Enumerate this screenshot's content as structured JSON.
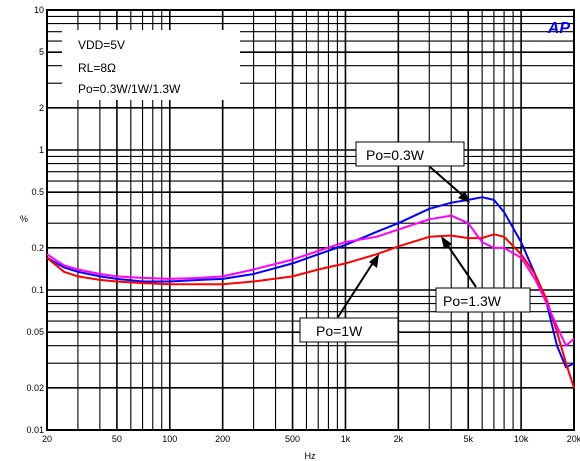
{
  "chart_data": {
    "type": "line",
    "xlabel": "Hz",
    "ylabel": "%",
    "x_scale": "log",
    "y_scale": "log",
    "xlim": [
      20,
      20000
    ],
    "ylim": [
      0.01,
      10
    ],
    "grid": true,
    "x_ticks": [
      {
        "value": 20,
        "label": "20"
      },
      {
        "value": 50,
        "label": "50"
      },
      {
        "value": 100,
        "label": "100"
      },
      {
        "value": 200,
        "label": "200"
      },
      {
        "value": 500,
        "label": "500"
      },
      {
        "value": 1000,
        "label": "1k"
      },
      {
        "value": 2000,
        "label": "2k"
      },
      {
        "value": 5000,
        "label": "5k"
      },
      {
        "value": 10000,
        "label": "10k"
      },
      {
        "value": 20000,
        "label": "20k"
      }
    ],
    "y_ticks": [
      {
        "value": 10,
        "label": "10"
      },
      {
        "value": 5,
        "label": "5"
      },
      {
        "value": 2,
        "label": "2"
      },
      {
        "value": 1,
        "label": "1"
      },
      {
        "value": 0.5,
        "label": "0.5"
      },
      {
        "value": 0.2,
        "label": "0.2"
      },
      {
        "value": 0.1,
        "label": "0.1"
      },
      {
        "value": 0.05,
        "label": "0.05"
      },
      {
        "value": 0.02,
        "label": "0.02"
      },
      {
        "value": 0.01,
        "label": "0.01"
      }
    ],
    "conditions": [
      "VDD=5V",
      "RL=8Ω",
      "Po=0.3W/1W/1.3W"
    ],
    "series": [
      {
        "name": "Po=0.3W",
        "color": "#0000ff",
        "points": [
          [
            20,
            0.17
          ],
          [
            25,
            0.145
          ],
          [
            30,
            0.135
          ],
          [
            40,
            0.125
          ],
          [
            50,
            0.12
          ],
          [
            70,
            0.115
          ],
          [
            100,
            0.115
          ],
          [
            150,
            0.118
          ],
          [
            200,
            0.12
          ],
          [
            300,
            0.13
          ],
          [
            500,
            0.155
          ],
          [
            700,
            0.18
          ],
          [
            1000,
            0.21
          ],
          [
            1500,
            0.26
          ],
          [
            2000,
            0.3
          ],
          [
            3000,
            0.38
          ],
          [
            4000,
            0.42
          ],
          [
            5000,
            0.44
          ],
          [
            6000,
            0.46
          ],
          [
            7000,
            0.44
          ],
          [
            8000,
            0.36
          ],
          [
            10000,
            0.22
          ],
          [
            12000,
            0.13
          ],
          [
            14000,
            0.08
          ],
          [
            16000,
            0.04
          ],
          [
            18000,
            0.028
          ],
          [
            20000,
            0.03
          ]
        ]
      },
      {
        "name": "Po=1W",
        "color": "#ff0000",
        "points": [
          [
            20,
            0.17
          ],
          [
            25,
            0.135
          ],
          [
            30,
            0.125
          ],
          [
            40,
            0.118
          ],
          [
            50,
            0.115
          ],
          [
            70,
            0.112
          ],
          [
            100,
            0.11
          ],
          [
            150,
            0.11
          ],
          [
            200,
            0.11
          ],
          [
            300,
            0.115
          ],
          [
            500,
            0.125
          ],
          [
            700,
            0.14
          ],
          [
            1000,
            0.155
          ],
          [
            1500,
            0.18
          ],
          [
            2000,
            0.205
          ],
          [
            3000,
            0.24
          ],
          [
            4000,
            0.245
          ],
          [
            5000,
            0.235
          ],
          [
            6000,
            0.235
          ],
          [
            7000,
            0.25
          ],
          [
            8000,
            0.24
          ],
          [
            10000,
            0.18
          ],
          [
            12000,
            0.13
          ],
          [
            14000,
            0.085
          ],
          [
            16000,
            0.05
          ],
          [
            18000,
            0.03
          ],
          [
            20000,
            0.02
          ]
        ]
      },
      {
        "name": "Po=1.3W",
        "color": "#ff00ff",
        "points": [
          [
            20,
            0.18
          ],
          [
            25,
            0.15
          ],
          [
            30,
            0.14
          ],
          [
            40,
            0.13
          ],
          [
            50,
            0.125
          ],
          [
            70,
            0.122
          ],
          [
            100,
            0.12
          ],
          [
            150,
            0.122
          ],
          [
            200,
            0.125
          ],
          [
            300,
            0.14
          ],
          [
            500,
            0.165
          ],
          [
            700,
            0.19
          ],
          [
            1000,
            0.22
          ],
          [
            1500,
            0.24
          ],
          [
            2000,
            0.27
          ],
          [
            3000,
            0.32
          ],
          [
            4000,
            0.34
          ],
          [
            5000,
            0.3
          ],
          [
            6000,
            0.22
          ],
          [
            7000,
            0.2
          ],
          [
            8000,
            0.2
          ],
          [
            10000,
            0.17
          ],
          [
            12000,
            0.12
          ],
          [
            14000,
            0.08
          ],
          [
            16000,
            0.055
          ],
          [
            18000,
            0.04
          ],
          [
            20000,
            0.045
          ]
        ]
      }
    ],
    "annotations": [
      {
        "text": "Po=0.3W",
        "series": "Po=0.3W"
      },
      {
        "text": "Po=1.3W",
        "series": "Po=1.3W"
      },
      {
        "text": "Po=1W",
        "series": "Po=1W"
      }
    ]
  }
}
